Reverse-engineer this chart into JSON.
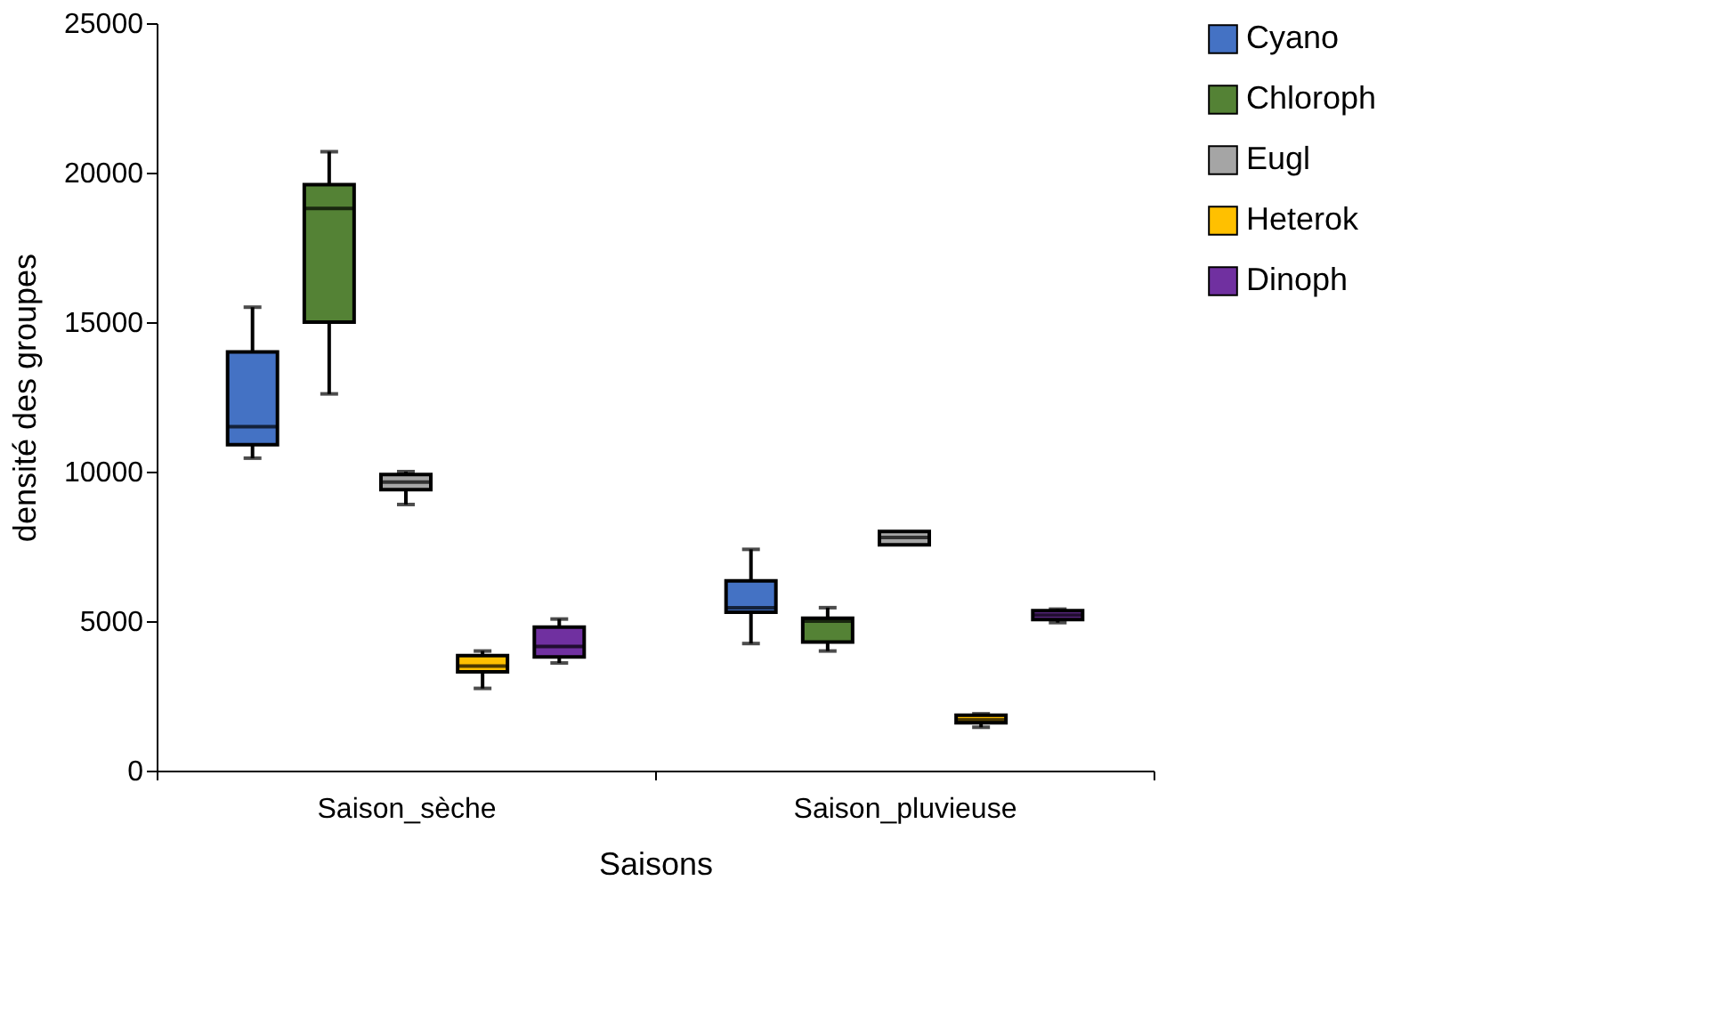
{
  "chart_data": {
    "type": "box",
    "xlabel": "Saisons",
    "ylabel": "densité des groupes",
    "categories": [
      "Saison_sèche",
      "Saison_pluvieuse"
    ],
    "ylim": [
      0,
      25000
    ],
    "yticks": [
      0,
      5000,
      10000,
      15000,
      20000,
      25000
    ],
    "grid": false,
    "legend": "right",
    "series": [
      {
        "name": "Cyano",
        "color": "#4472c4",
        "boxes": [
          {
            "low": 10450,
            "q1": 10900,
            "median": 11500,
            "q3": 14000,
            "high": 15500
          },
          {
            "low": 4250,
            "q1": 5300,
            "median": 5450,
            "q3": 6350,
            "high": 7400
          }
        ]
      },
      {
        "name": "Chloroph",
        "color": "#548235",
        "boxes": [
          {
            "low": 12600,
            "q1": 15000,
            "median": 18800,
            "q3": 19600,
            "high": 20700
          },
          {
            "low": 4000,
            "q1": 4300,
            "median": 5000,
            "q3": 5100,
            "high": 5450
          }
        ]
      },
      {
        "name": "Eugl",
        "color": "#a5a5a5",
        "boxes": [
          {
            "low": 8900,
            "q1": 9400,
            "median": 9650,
            "q3": 9900,
            "high": 10000
          },
          {
            "low": 7550,
            "q1": 7550,
            "median": 7800,
            "q3": 8000,
            "high": 8000
          }
        ]
      },
      {
        "name": "Heterok",
        "color": "#ffc000",
        "boxes": [
          {
            "low": 2750,
            "q1": 3300,
            "median": 3500,
            "q3": 3850,
            "high": 4000
          },
          {
            "low": 1450,
            "q1": 1600,
            "median": 1700,
            "q3": 1850,
            "high": 1900
          }
        ]
      },
      {
        "name": "Dinoph",
        "color": "#7030a0",
        "boxes": [
          {
            "low": 3600,
            "q1": 3800,
            "median": 4150,
            "q3": 4800,
            "high": 5070
          },
          {
            "low": 4950,
            "q1": 5050,
            "median": 5200,
            "q3": 5350,
            "high": 5400
          }
        ]
      }
    ]
  }
}
